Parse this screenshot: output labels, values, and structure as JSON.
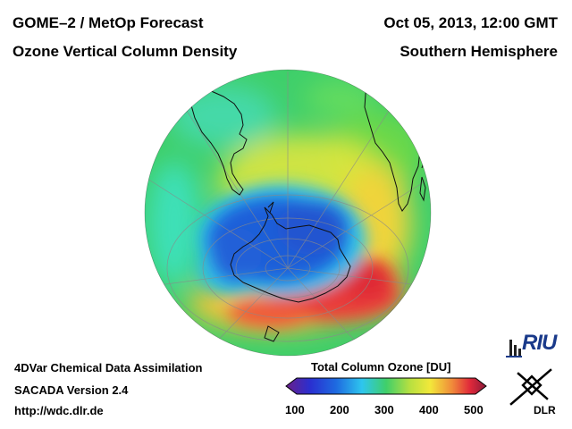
{
  "header": {
    "title_left_1": "GOME–2 / MetOp Forecast",
    "title_left_2": "Ozone Vertical Column Density",
    "title_right_1": "Oct 05, 2013, 12:00 GMT",
    "title_right_2": "Southern Hemisphere"
  },
  "footer": {
    "line1": "4DVar Chemical Data Assimilation",
    "line2": "SACADA Version 2.4",
    "line3": "http://wdc.dlr.de"
  },
  "colorbar": {
    "title": "Total Column Ozone [DU]",
    "ticks": [
      "100",
      "200",
      "300",
      "400",
      "500"
    ],
    "min": 100,
    "max": 500
  },
  "logos": {
    "riu": "RIU",
    "dlr": "DLR"
  },
  "colors": {
    "blue": "#1e5fd9",
    "cyan": "#2ec6ee",
    "green": "#3fcf6a",
    "yellow": "#f2e83a",
    "orange": "#f5a33a",
    "red": "#e8383a"
  }
}
